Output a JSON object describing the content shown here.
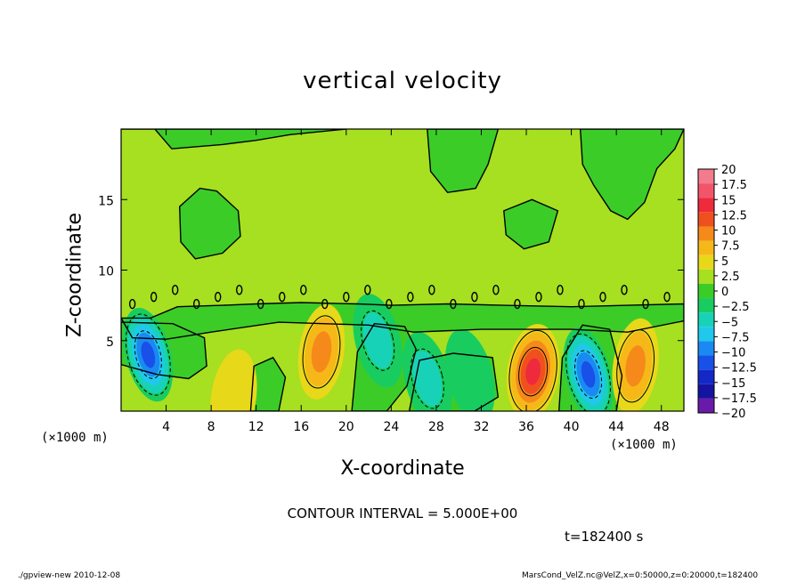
{
  "chart_data": {
    "type": "heatmap",
    "title": "vertical velocity",
    "xlabel": "X-coordinate",
    "ylabel": "Z-coordinate",
    "x_unit_label": "(×1000 m)",
    "xlim": [
      0,
      50
    ],
    "ylim": [
      0,
      20
    ],
    "x_ticks": [
      4,
      8,
      12,
      16,
      20,
      24,
      28,
      32,
      36,
      40,
      44,
      48
    ],
    "y_ticks": [
      5,
      10,
      15
    ],
    "colorbar": {
      "levels": [
        20,
        17.5,
        15,
        12.5,
        10,
        7.5,
        5,
        2.5,
        0,
        -2.5,
        -5,
        -7.5,
        -10,
        -12.5,
        -15,
        -17.5,
        -20
      ],
      "labels": [
        "20",
        "17.5",
        "15",
        "12.5",
        "10",
        "7.5",
        "5",
        "2.5",
        "0",
        "−2.5",
        "−5",
        "−7.5",
        "−10",
        "−12.5",
        "−15",
        "−17.5",
        "−20"
      ],
      "colors": [
        "#f47a8e",
        "#f2556a",
        "#ee2a3c",
        "#f0501e",
        "#f58a1a",
        "#f6b818",
        "#e8d81a",
        "#a6e020",
        "#3ccc28",
        "#18cc60",
        "#18d2b8",
        "#20c8ec",
        "#1a8af2",
        "#1850e8",
        "#1428c8",
        "#1414a0",
        "#6a1aa8"
      ]
    },
    "features": [
      {
        "kind": "updraft",
        "x": 17.8,
        "z": 4.2,
        "peak": 8
      },
      {
        "kind": "updraft",
        "x": 36.6,
        "z": 2.8,
        "peak": 14
      },
      {
        "kind": "updraft",
        "x": 45.7,
        "z": 3.2,
        "peak": 8
      },
      {
        "kind": "updraft",
        "x": 10.0,
        "z": 1.0,
        "peak": 4
      },
      {
        "kind": "downdraft",
        "x": 2.4,
        "z": 4.0,
        "peak": -13
      },
      {
        "kind": "downdraft",
        "x": 41.5,
        "z": 2.6,
        "peak": -13
      },
      {
        "kind": "downdraft",
        "x": 22.8,
        "z": 5.0,
        "peak": -6
      },
      {
        "kind": "downdraft",
        "x": 27.2,
        "z": 2.3,
        "peak": -6
      },
      {
        "kind": "downdraft",
        "x": 31.0,
        "z": 2.5,
        "peak": -3
      }
    ],
    "contour_interval_text": "CONTOUR INTERVAL = 5.000E+00",
    "time_text": "t=182400 s"
  },
  "footer": {
    "left": "./gpview-new  2010-12-08",
    "right": "MarsCond_VelZ.nc@VelZ,x=0:50000,z=0:20000,t=182400"
  }
}
